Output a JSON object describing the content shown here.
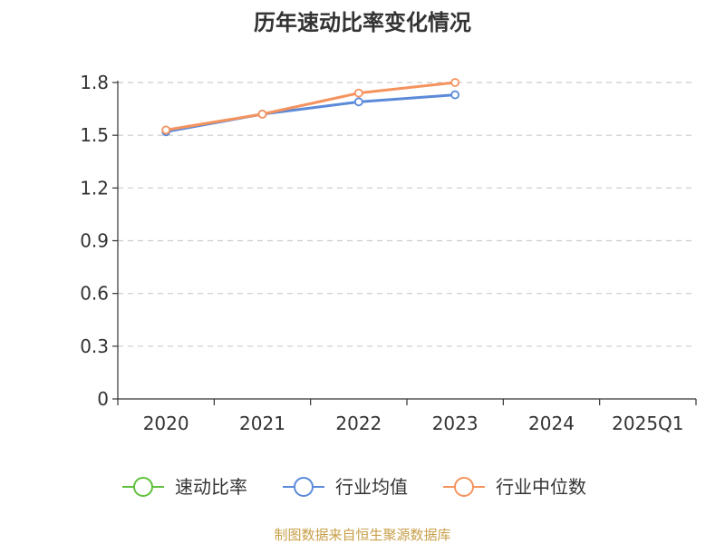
{
  "chart_data": {
    "type": "line",
    "title": "历年速动比率变化情况",
    "categories": [
      "2020",
      "2021",
      "2022",
      "2023",
      "2024",
      "2025Q1"
    ],
    "ylim": [
      0,
      1.8
    ],
    "yticks": [
      "0",
      "0.3",
      "0.6",
      "0.9",
      "1.2",
      "1.5",
      "1.8"
    ],
    "grid": true,
    "legend_position": "bottom",
    "series": [
      {
        "name": "速动比率",
        "color": "#5fc13d",
        "values": [
          null,
          null,
          null,
          null,
          null,
          null
        ]
      },
      {
        "name": "行业均值",
        "color": "#5b8ad9",
        "values": [
          1.52,
          1.62,
          1.69,
          1.73,
          null,
          null
        ]
      },
      {
        "name": "行业中位数",
        "color": "#f5935e",
        "values": [
          1.53,
          1.62,
          1.74,
          1.8,
          null,
          null
        ]
      }
    ]
  },
  "footer": {
    "source": "制图数据来自恒生聚源数据库"
  }
}
